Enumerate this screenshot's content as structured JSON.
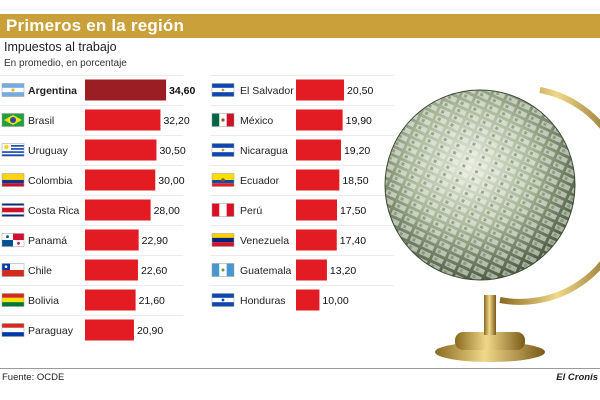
{
  "header": {
    "title": "Primeros en la región",
    "subtitle": "Impuestos al trabajo",
    "note": "En promedio, en porcentaje"
  },
  "footer": {
    "source": "Fuente: OCDE",
    "brand": "El Cronis"
  },
  "colors": {
    "title_bar": "#c9a03a",
    "bar_red": "#e31b23",
    "bar_top": "#9c1e25"
  },
  "chart_data": {
    "type": "bar",
    "title": "Impuestos al trabajo",
    "subtitle": "En promedio, en porcentaje",
    "xlabel": "",
    "ylabel": "",
    "ylim": [
      0,
      35
    ],
    "grid": false,
    "legend": "none",
    "columns": [
      {
        "categories": [
          "Argentina",
          "Brasil",
          "Uruguay",
          "Colombia",
          "Costa Rica",
          "Panamá",
          "Chile",
          "Bolivia",
          "Paraguay"
        ],
        "values": [
          34.6,
          32.2,
          30.5,
          30.0,
          28.0,
          22.9,
          22.6,
          21.6,
          20.9
        ],
        "value_labels": [
          "34,60",
          "32,20",
          "30,50",
          "30,00",
          "28,00",
          "22,90",
          "22,60",
          "21,60",
          "20,90"
        ]
      },
      {
        "categories": [
          "El Salvador",
          "México",
          "Nicaragua",
          "Ecuador",
          "Perú",
          "Venezuela",
          "Guatemala",
          "Honduras"
        ],
        "values": [
          20.5,
          19.9,
          19.2,
          18.5,
          17.5,
          17.4,
          13.2,
          10.0
        ],
        "value_labels": [
          "20,50",
          "19,90",
          "19,20",
          "18,50",
          "17,50",
          "17,40",
          "13,20",
          "10,00"
        ]
      }
    ],
    "flags": {
      "Argentina": "argentina-flag-icon",
      "Brasil": "brazil-flag-icon",
      "Uruguay": "uruguay-flag-icon",
      "Colombia": "colombia-flag-icon",
      "Costa Rica": "costa-rica-flag-icon",
      "Panamá": "panama-flag-icon",
      "Chile": "chile-flag-icon",
      "Bolivia": "bolivia-flag-icon",
      "Paraguay": "paraguay-flag-icon",
      "El Salvador": "el-salvador-flag-icon",
      "México": "mexico-flag-icon",
      "Nicaragua": "nicaragua-flag-icon",
      "Ecuador": "ecuador-flag-icon",
      "Perú": "peru-flag-icon",
      "Venezuela": "venezuela-flag-icon",
      "Guatemala": "guatemala-flag-icon",
      "Honduras": "honduras-flag-icon"
    }
  },
  "illustration": {
    "icon": "money-globe-icon"
  }
}
